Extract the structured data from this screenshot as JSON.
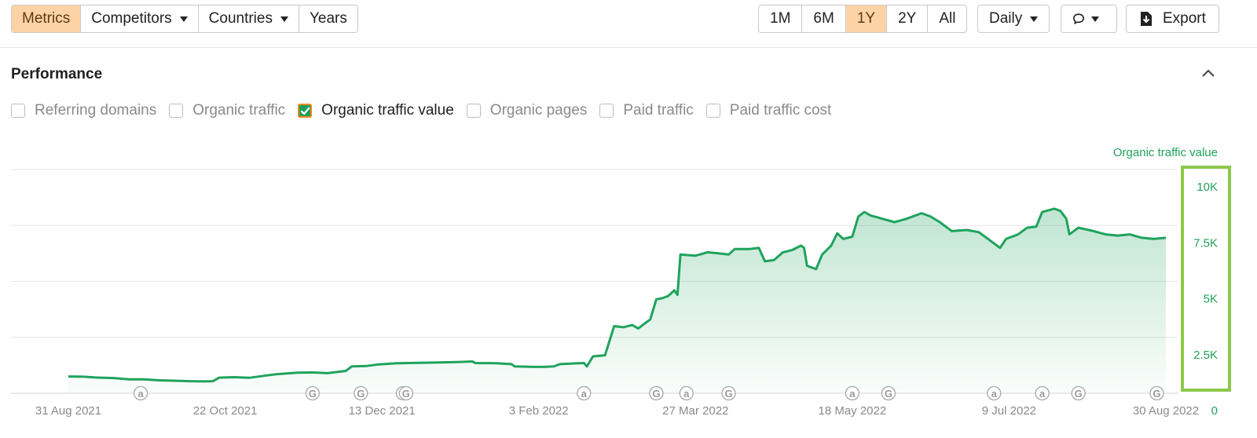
{
  "toolbar": {
    "tabs": [
      {
        "label": "Metrics",
        "active": true,
        "dropdown": false
      },
      {
        "label": "Competitors",
        "active": false,
        "dropdown": true
      },
      {
        "label": "Countries",
        "active": false,
        "dropdown": true
      },
      {
        "label": "Years",
        "active": false,
        "dropdown": false
      }
    ],
    "ranges": [
      {
        "label": "1M",
        "active": false
      },
      {
        "label": "6M",
        "active": false
      },
      {
        "label": "1Y",
        "active": true
      },
      {
        "label": "2Y",
        "active": false
      },
      {
        "label": "All",
        "active": false
      }
    ],
    "interval": "Daily",
    "comment_icon": "speech-bubble-icon",
    "export_label": "Export",
    "export_icon": "download-icon"
  },
  "section": {
    "title": "Performance",
    "collapse_icon": "chevron-up-icon"
  },
  "metrics": [
    {
      "label": "Referring domains",
      "checked": false
    },
    {
      "label": "Organic traffic",
      "checked": false
    },
    {
      "label": "Organic traffic value",
      "checked": true
    },
    {
      "label": "Organic pages",
      "checked": false
    },
    {
      "label": "Paid traffic",
      "checked": false
    },
    {
      "label": "Paid traffic cost",
      "checked": false
    }
  ],
  "colors": {
    "accent": "#fdd3a6",
    "line": "#1fa35c",
    "axis_text": "#1fa35c",
    "highlight": "#8cc84b",
    "checkbox_checked": "#19a05a",
    "checkbox_border": "#f08a1c"
  },
  "chart_data": {
    "type": "area",
    "series": [
      {
        "name": "Organic traffic value",
        "points": [
          [
            "2021-08-31",
            750
          ],
          [
            "2021-09-05",
            740
          ],
          [
            "2021-09-10",
            700
          ],
          [
            "2021-09-15",
            680
          ],
          [
            "2021-09-20",
            620
          ],
          [
            "2021-09-25",
            620
          ],
          [
            "2021-09-30",
            580
          ],
          [
            "2021-10-05",
            560
          ],
          [
            "2021-10-10",
            540
          ],
          [
            "2021-10-15",
            530
          ],
          [
            "2021-10-18",
            540
          ],
          [
            "2021-10-20",
            700
          ],
          [
            "2021-10-25",
            720
          ],
          [
            "2021-10-30",
            690
          ],
          [
            "2021-11-05",
            800
          ],
          [
            "2021-11-08",
            850
          ],
          [
            "2021-11-15",
            920
          ],
          [
            "2021-11-20",
            930
          ],
          [
            "2021-11-25",
            900
          ],
          [
            "2021-12-01",
            1000
          ],
          [
            "2021-12-03",
            1200
          ],
          [
            "2021-12-08",
            1220
          ],
          [
            "2021-12-12",
            1290
          ],
          [
            "2021-12-18",
            1340
          ],
          [
            "2021-12-25",
            1360
          ],
          [
            "2022-01-01",
            1380
          ],
          [
            "2022-01-08",
            1400
          ],
          [
            "2022-01-12",
            1420
          ],
          [
            "2022-01-13",
            1350
          ],
          [
            "2022-01-20",
            1340
          ],
          [
            "2022-01-25",
            1300
          ],
          [
            "2022-01-26",
            1200
          ],
          [
            "2022-02-01",
            1180
          ],
          [
            "2022-02-05",
            1180
          ],
          [
            "2022-02-08",
            1200
          ],
          [
            "2022-02-10",
            1300
          ],
          [
            "2022-02-14",
            1330
          ],
          [
            "2022-02-18",
            1350
          ],
          [
            "2022-02-19",
            1200
          ],
          [
            "2022-02-21",
            1650
          ],
          [
            "2022-02-25",
            1700
          ],
          [
            "2022-02-28",
            3000
          ],
          [
            "2022-03-03",
            2950
          ],
          [
            "2022-03-06",
            3050
          ],
          [
            "2022-03-08",
            2900
          ],
          [
            "2022-03-10",
            3100
          ],
          [
            "2022-03-12",
            3300
          ],
          [
            "2022-03-14",
            4200
          ],
          [
            "2022-03-16",
            4250
          ],
          [
            "2022-03-18",
            4350
          ],
          [
            "2022-03-20",
            4600
          ],
          [
            "2022-03-21",
            4400
          ],
          [
            "2022-03-22",
            6200
          ],
          [
            "2022-03-27",
            6150
          ],
          [
            "2022-03-31",
            6300
          ],
          [
            "2022-04-04",
            6250
          ],
          [
            "2022-04-07",
            6200
          ],
          [
            "2022-04-09",
            6450
          ],
          [
            "2022-04-14",
            6450
          ],
          [
            "2022-04-17",
            6500
          ],
          [
            "2022-04-19",
            5900
          ],
          [
            "2022-04-22",
            5950
          ],
          [
            "2022-04-25",
            6300
          ],
          [
            "2022-04-28",
            6400
          ],
          [
            "2022-05-01",
            6600
          ],
          [
            "2022-05-02",
            6500
          ],
          [
            "2022-05-03",
            5700
          ],
          [
            "2022-05-06",
            5550
          ],
          [
            "2022-05-08",
            6200
          ],
          [
            "2022-05-11",
            6600
          ],
          [
            "2022-05-13",
            7150
          ],
          [
            "2022-05-15",
            6900
          ],
          [
            "2022-05-18",
            7000
          ],
          [
            "2022-05-20",
            7900
          ],
          [
            "2022-05-22",
            8100
          ],
          [
            "2022-05-24",
            7950
          ],
          [
            "2022-05-28",
            7800
          ],
          [
            "2022-06-01",
            7650
          ],
          [
            "2022-06-05",
            7800
          ],
          [
            "2022-06-10",
            8050
          ],
          [
            "2022-06-13",
            7900
          ],
          [
            "2022-06-16",
            7650
          ],
          [
            "2022-06-20",
            7250
          ],
          [
            "2022-06-25",
            7300
          ],
          [
            "2022-06-29",
            7200
          ],
          [
            "2022-07-04",
            6700
          ],
          [
            "2022-07-06",
            6500
          ],
          [
            "2022-07-08",
            6900
          ],
          [
            "2022-07-12",
            7100
          ],
          [
            "2022-07-15",
            7400
          ],
          [
            "2022-07-18",
            7450
          ],
          [
            "2022-07-20",
            8100
          ],
          [
            "2022-07-24",
            8250
          ],
          [
            "2022-07-26",
            8150
          ],
          [
            "2022-07-28",
            7800
          ],
          [
            "2022-07-29",
            7100
          ],
          [
            "2022-08-01",
            7400
          ],
          [
            "2022-08-06",
            7250
          ],
          [
            "2022-08-10",
            7100
          ],
          [
            "2022-08-14",
            7050
          ],
          [
            "2022-08-18",
            7100
          ],
          [
            "2022-08-22",
            6950
          ],
          [
            "2022-08-26",
            6900
          ],
          [
            "2022-08-30",
            6950
          ]
        ]
      }
    ],
    "x_range": [
      "2021-08-31",
      "2022-08-30"
    ],
    "x_ticks": [
      "31 Aug 2021",
      "22 Oct 2021",
      "13 Dec 2021",
      "3 Feb 2022",
      "27 Mar 2022",
      "18 May 2022",
      "9 Jul 2022",
      "30 Aug 2022"
    ],
    "x_tick_dates": [
      "2021-08-31",
      "2021-10-22",
      "2021-12-13",
      "2022-02-03",
      "2022-03-27",
      "2022-05-18",
      "2022-07-09",
      "2022-08-30"
    ],
    "ylabel": "Organic traffic value",
    "ylim": [
      0,
      10000
    ],
    "y_ticks": [
      0,
      2500,
      5000,
      7500,
      10000
    ],
    "y_tick_labels": [
      "0",
      "2.5K",
      "5K",
      "7.5K",
      "10K"
    ],
    "y_axis_position": "right",
    "grid": true,
    "annotations": [
      {
        "date": "2021-09-24",
        "letter": "a"
      },
      {
        "date": "2021-11-20",
        "letter": "G"
      },
      {
        "date": "2021-12-06",
        "letter": "G"
      },
      {
        "date": "2021-12-20",
        "letter": "G"
      },
      {
        "date": "2021-12-21",
        "letter": "G"
      },
      {
        "date": "2022-02-18",
        "letter": "a"
      },
      {
        "date": "2022-03-14",
        "letter": "G"
      },
      {
        "date": "2022-03-24",
        "letter": "a"
      },
      {
        "date": "2022-04-07",
        "letter": "G"
      },
      {
        "date": "2022-05-18",
        "letter": "a"
      },
      {
        "date": "2022-05-30",
        "letter": "G"
      },
      {
        "date": "2022-07-04",
        "letter": "a"
      },
      {
        "date": "2022-07-20",
        "letter": "a"
      },
      {
        "date": "2022-08-01",
        "letter": "G"
      },
      {
        "date": "2022-08-27",
        "letter": "G"
      }
    ]
  }
}
